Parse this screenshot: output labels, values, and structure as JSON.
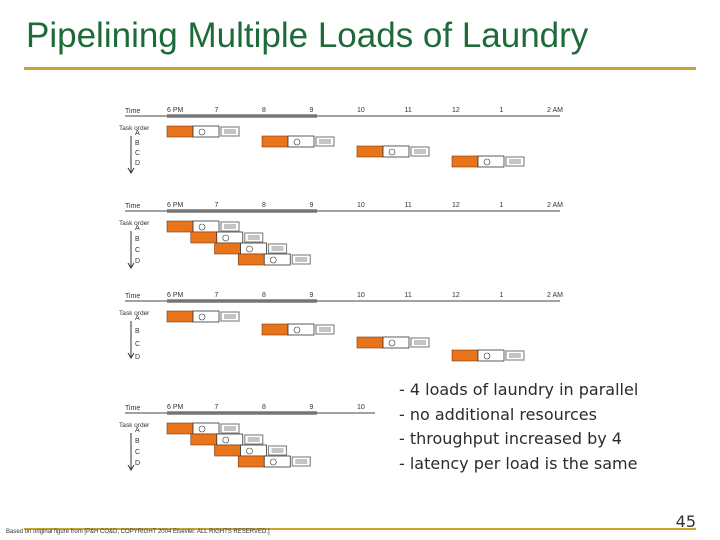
{
  "slide": {
    "title": "Pipelining Multiple Loads of Laundry",
    "bullets": [
      "- 4 loads of laundry in parallel",
      "- no additional resources",
      "- throughput increased by 4",
      "- latency per load is the same"
    ],
    "credit": "Based on original figure from [P&H CO&D, COPYRIGHT 2004 Elsevier. ALL RIGHTS RESERVED.]",
    "page_number": "45"
  },
  "figure": {
    "time_label": "Time",
    "task_order_label": "Task order",
    "task_letters": [
      "A",
      "B",
      "C",
      "D"
    ],
    "panels": [
      {
        "hours": [
          "6 PM",
          "7",
          "8",
          "9",
          "10",
          "11",
          "12",
          "1",
          "2 AM"
        ]
      },
      {
        "hours": [
          "6 PM",
          "7",
          "8",
          "9",
          "10",
          "11",
          "12",
          "1",
          "2 AM"
        ]
      },
      {
        "hours": [
          "6 PM",
          "7",
          "8",
          "9",
          "10",
          "11",
          "12",
          "1",
          "2 AM"
        ]
      },
      {
        "hours": [
          "6 PM",
          "7",
          "8",
          "9",
          "10"
        ]
      }
    ],
    "colors": {
      "washer": "#e8741c",
      "dryer": "#ffffff",
      "folder": "#8a8a8a",
      "accent": "#c8a432",
      "title": "#1e6b3a"
    }
  }
}
